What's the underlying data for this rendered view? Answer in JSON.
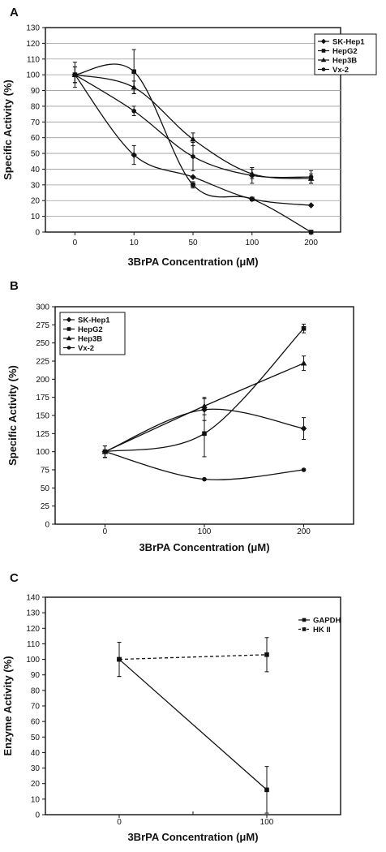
{
  "chart_data": [
    {
      "panel_label": "A",
      "type": "line",
      "categories": [
        "0",
        "10",
        "50",
        "100",
        "200"
      ],
      "xlabel": "3BrPA Concentration (μM)",
      "ylabel": "Specific Activity (%)",
      "ylim": [
        0,
        130
      ],
      "ytick_step": 10,
      "grid": true,
      "legend_position": "top-right",
      "series": [
        {
          "name": "SK-Hep1",
          "marker": "diamond",
          "values": [
            100,
            49,
            35,
            21,
            17
          ],
          "errors": [
            5,
            6,
            0,
            0,
            0
          ]
        },
        {
          "name": "HepG2",
          "marker": "square",
          "values": [
            100,
            102,
            30,
            21,
            0
          ],
          "errors": [
            5,
            14,
            2,
            0,
            0
          ]
        },
        {
          "name": "Hep3B",
          "marker": "triangle",
          "values": [
            100,
            92,
            59,
            37,
            34
          ],
          "errors": [
            5,
            4,
            4,
            3,
            3
          ]
        },
        {
          "name": "Vx-2",
          "marker": "circle",
          "values": [
            100,
            77,
            48,
            36,
            35
          ],
          "errors": [
            8,
            3,
            9,
            5,
            4
          ]
        }
      ]
    },
    {
      "panel_label": "B",
      "type": "line",
      "categories": [
        "0",
        "100",
        "200"
      ],
      "xlabel": "3BrPA Concentration (μM)",
      "ylabel": "Specific Activity (%)",
      "ylim": [
        0,
        300
      ],
      "ytick_step": 25,
      "grid": false,
      "legend_position": "top-left",
      "series": [
        {
          "name": "SK-Hep1",
          "marker": "diamond",
          "values": [
            100,
            158,
            132
          ],
          "errors": [
            8,
            15,
            15
          ]
        },
        {
          "name": "HepG2",
          "marker": "square",
          "values": [
            100,
            125,
            270
          ],
          "errors": [
            8,
            32,
            6
          ]
        },
        {
          "name": "Hep3B",
          "marker": "triangle",
          "values": [
            100,
            163,
            222
          ],
          "errors": [
            8,
            12,
            10
          ]
        },
        {
          "name": "Vx-2",
          "marker": "circle",
          "values": [
            100,
            62,
            75
          ],
          "errors": [
            8,
            0,
            0
          ]
        }
      ]
    },
    {
      "panel_label": "C",
      "type": "line",
      "categories": [
        "0",
        "100"
      ],
      "xlabel": "3BrPA Concentration (μM)",
      "ylabel": "Enzyme Activity (%)",
      "ylim": [
        0,
        140
      ],
      "ytick_step": 10,
      "grid": false,
      "legend_position": "top-right",
      "series": [
        {
          "name": "GAPDH",
          "marker": "square",
          "dashed": false,
          "values": [
            100,
            16
          ],
          "errors": [
            11,
            15
          ]
        },
        {
          "name": "HK II",
          "marker": "square",
          "dashed": true,
          "values": [
            100,
            103
          ],
          "errors": [
            11,
            11
          ]
        }
      ]
    }
  ]
}
